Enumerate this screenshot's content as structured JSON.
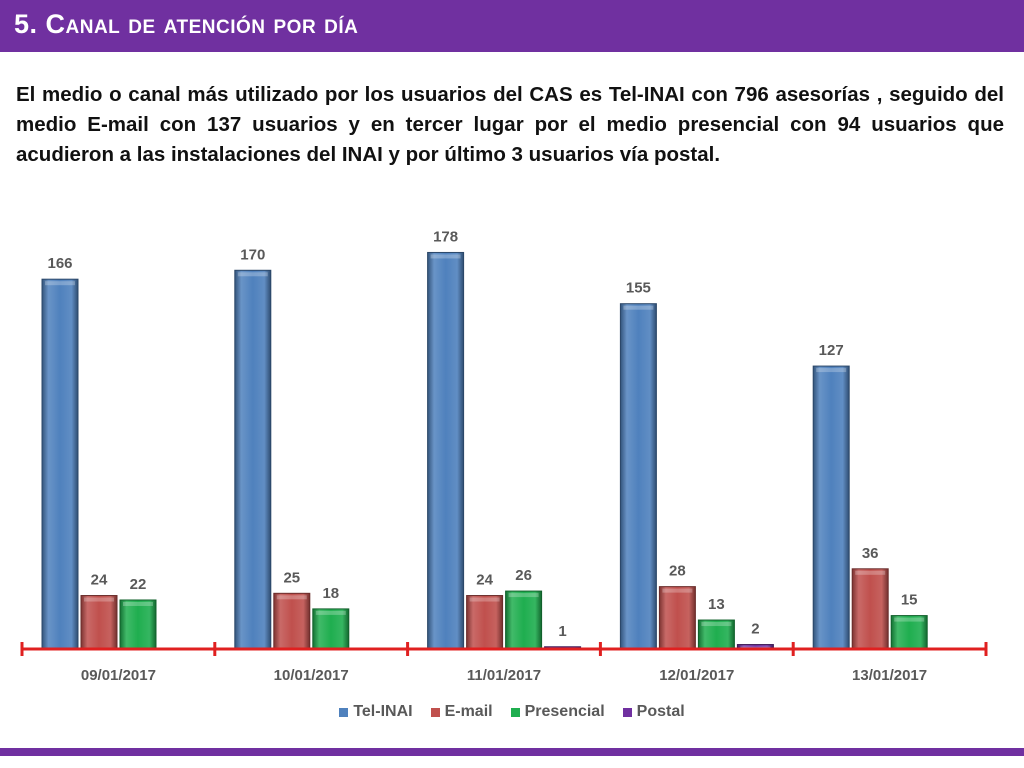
{
  "slide": {
    "title": "5. Canal de atención por día",
    "intro": "El medio o canal más utilizado por los usuarios del CAS es Tel-INAI con 796 asesorías , seguido del medio E-mail con 137 usuarios y en tercer lugar por el medio presencial con 94 usuarios que acudieron a las instalaciones del INAI y por último 3 usuarios vía postal."
  },
  "colors": {
    "accent": "#7030a0",
    "axis": "#e02020",
    "Tel-INAI": "#4f81bd",
    "E-mail": "#c0504d",
    "Presencial": "#1fae4f",
    "Postal": "#7030a0"
  },
  "chart_data": {
    "type": "bar",
    "categories": [
      "09/01/2017",
      "10/01/2017",
      "11/01/2017",
      "12/01/2017",
      "13/01/2017"
    ],
    "series": [
      {
        "name": "Tel-INAI",
        "values": [
          166,
          170,
          178,
          155,
          127
        ]
      },
      {
        "name": "E-mail",
        "values": [
          24,
          25,
          24,
          28,
          36
        ]
      },
      {
        "name": "Presencial",
        "values": [
          22,
          18,
          26,
          13,
          15
        ]
      },
      {
        "name": "Postal",
        "values": [
          null,
          null,
          1,
          2,
          null
        ]
      }
    ],
    "data_labels": true,
    "ylim": [
      0,
      180
    ],
    "grid": false,
    "legend_position": "bottom"
  }
}
